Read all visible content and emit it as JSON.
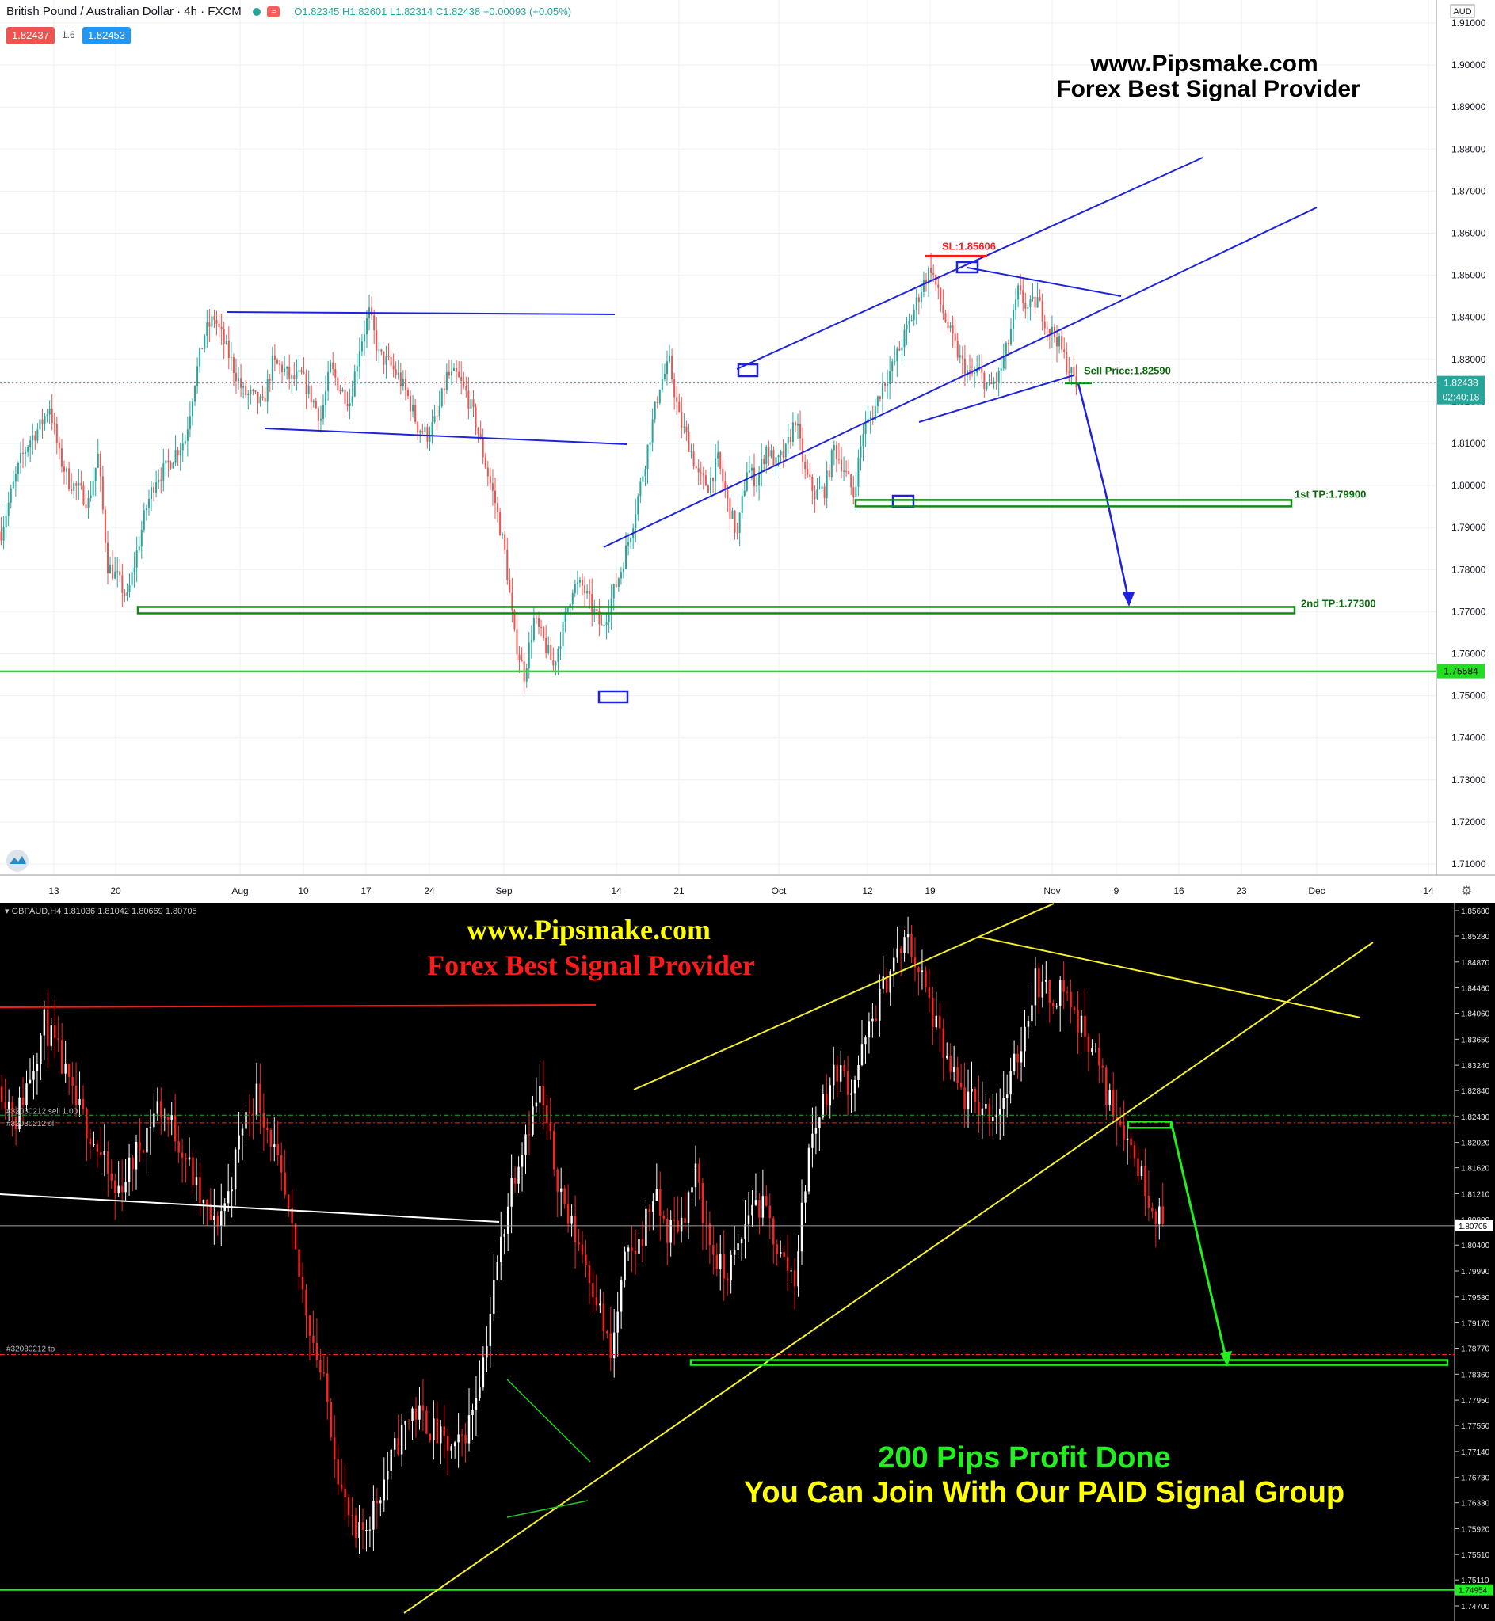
{
  "top_chart": {
    "header": {
      "symbol_title": "British Pound / Australian Dollar · 4h · FXCM",
      "ohlc": "O1.82345 H1.82601 L1.82314 C1.82438 +0.00093 (+0.05%)",
      "bid": "1.82437",
      "spread": "1.6",
      "ask": "1.82453"
    },
    "currency": "AUD",
    "watermark": [
      "www.Pipsmake.com",
      "Forex Best Signal Provider"
    ],
    "price_ticks": [
      "1.91000",
      "1.90000",
      "1.89000",
      "1.88000",
      "1.87000",
      "1.86000",
      "1.85000",
      "1.84000",
      "1.83000",
      "1.82000",
      "1.81000",
      "1.80000",
      "1.79000",
      "1.78000",
      "1.77000",
      "1.76000",
      "1.75000",
      "1.74000",
      "1.73000",
      "1.72000",
      "1.71000"
    ],
    "date_ticks": [
      "13",
      "20",
      "Aug",
      "10",
      "17",
      "24",
      "Sep",
      "14",
      "21",
      "Oct",
      "12",
      "19",
      "Nov",
      "9",
      "16",
      "23",
      "Dec",
      "14"
    ],
    "last_price": "1.82438",
    "countdown": "02:40:18",
    "green_level": "1.75584",
    "annotations": {
      "sl": "SL:1.85606",
      "sell": "Sell Price:1.82590",
      "tp1": "1st TP:1.79900",
      "tp2": "2nd TP:1.77300"
    }
  },
  "bottom_chart": {
    "header": "GBPAUD,H4  1.81036 1.81042 1.80669 1.80705",
    "price_ticks": [
      "1.85680",
      "1.85280",
      "1.84870",
      "1.84460",
      "1.84060",
      "1.83650",
      "1.83240",
      "1.82840",
      "1.82430",
      "1.82020",
      "1.81620",
      "1.81210",
      "1.80800",
      "1.80400",
      "1.79990",
      "1.79580",
      "1.79170",
      "1.78770",
      "1.78360",
      "1.77950",
      "1.77550",
      "1.77140",
      "1.76730",
      "1.76330",
      "1.75920",
      "1.75510",
      "1.75110",
      "1.74700"
    ],
    "current_price": "1.80705",
    "green_level": "1.74954",
    "order_labels": {
      "sell": "#32030212 sell 1.00",
      "sl": "#32030212 sl",
      "tp": "#32030212 tp"
    },
    "watermark": [
      "www.Pipsmake.com",
      "Forex Best Signal Provider"
    ],
    "result": [
      "200 Pips Profit Done",
      "You Can Join With Our PAID Signal Group"
    ]
  },
  "chart_data": [
    {
      "type": "candlestick",
      "title": "British Pound / Australian Dollar · 4h · FXCM",
      "ylim": [
        1.705,
        1.915
      ],
      "x_ticks": [
        "13",
        "20",
        "Aug",
        "10",
        "17",
        "24",
        "Sep",
        "14",
        "21",
        "Oct",
        "12",
        "19",
        "Nov",
        "9",
        "16",
        "23",
        "Dec",
        "14"
      ],
      "series": [
        {
          "name": "GBPAUD 4h",
          "approx_close_path": [
            1.789,
            1.798,
            1.806,
            1.811,
            1.814,
            1.819,
            1.807,
            1.801,
            1.799,
            1.796,
            1.807,
            1.781,
            1.778,
            1.773,
            1.784,
            1.795,
            1.802,
            1.804,
            1.808,
            1.811,
            1.825,
            1.836,
            1.84,
            1.834,
            1.828,
            1.822,
            1.821,
            1.819,
            1.829,
            1.828,
            1.825,
            1.826,
            1.821,
            1.816,
            1.828,
            1.823,
            1.82,
            1.833,
            1.841,
            1.831,
            1.829,
            1.826,
            1.821,
            1.814,
            1.812,
            1.816,
            1.826,
            1.826,
            1.822,
            1.815,
            1.805,
            1.796,
            1.784,
            1.764,
            1.755,
            1.768,
            1.763,
            1.757,
            1.766,
            1.776,
            1.776,
            1.771,
            1.766,
            1.773,
            1.78,
            1.789,
            1.8,
            1.812,
            1.824,
            1.829,
            1.816,
            1.81,
            1.802,
            1.8,
            1.806,
            1.796,
            1.788,
            1.804,
            1.801,
            1.809,
            1.805,
            1.808,
            1.816,
            1.803,
            1.798,
            1.799,
            1.809,
            1.804,
            1.798,
            1.813,
            1.817,
            1.824,
            1.828,
            1.834,
            1.84,
            1.847,
            1.852,
            1.843,
            1.836,
            1.83,
            1.826,
            1.827,
            1.823,
            1.826,
            1.834,
            1.846,
            1.842,
            1.844,
            1.838,
            1.835,
            1.829,
            1.824
          ]
        }
      ],
      "levels": [
        {
          "name": "SL",
          "value": 1.85606
        },
        {
          "name": "Sell Price",
          "value": 1.8259
        },
        {
          "name": "1st TP",
          "value": 1.799
        },
        {
          "name": "2nd TP",
          "value": 1.773
        },
        {
          "name": "green line",
          "value": 1.75584
        },
        {
          "name": "last price",
          "value": 1.82438
        }
      ]
    },
    {
      "type": "candlestick",
      "title": "GBPAUD,H4",
      "ylim": [
        1.745,
        1.8588
      ],
      "series": [
        {
          "name": "GBPAUD H4",
          "approx_close_path": [
            1.829,
            1.824,
            1.831,
            1.839,
            1.834,
            1.827,
            1.823,
            1.818,
            1.812,
            1.816,
            1.821,
            1.826,
            1.823,
            1.818,
            1.811,
            1.807,
            1.812,
            1.823,
            1.828,
            1.821,
            1.811,
            1.799,
            1.789,
            1.779,
            1.765,
            1.757,
            1.761,
            1.767,
            1.773,
            1.778,
            1.776,
            1.773,
            1.771,
            1.776,
            1.786,
            1.801,
            1.814,
            1.822,
            1.828,
            1.817,
            1.808,
            1.803,
            1.796,
            1.786,
            1.801,
            1.804,
            1.812,
            1.806,
            1.808,
            1.815,
            1.804,
            1.799,
            1.803,
            1.811,
            1.809,
            1.802,
            1.799,
            1.819,
            1.827,
            1.832,
            1.829,
            1.836,
            1.843,
            1.849,
            1.852,
            1.846,
            1.838,
            1.831,
            1.827,
            1.826,
            1.825,
            1.828,
            1.836,
            1.846,
            1.843,
            1.845,
            1.839,
            1.836,
            1.828,
            1.824,
            1.818,
            1.812,
            1.807
          ]
        }
      ],
      "levels": [
        {
          "name": "sell",
          "value": 1.8245
        },
        {
          "name": "sl",
          "value": 1.8233
        },
        {
          "name": "tp",
          "value": 1.7867
        },
        {
          "name": "green line",
          "value": 1.74954
        },
        {
          "name": "current price",
          "value": 1.80705
        }
      ]
    }
  ]
}
